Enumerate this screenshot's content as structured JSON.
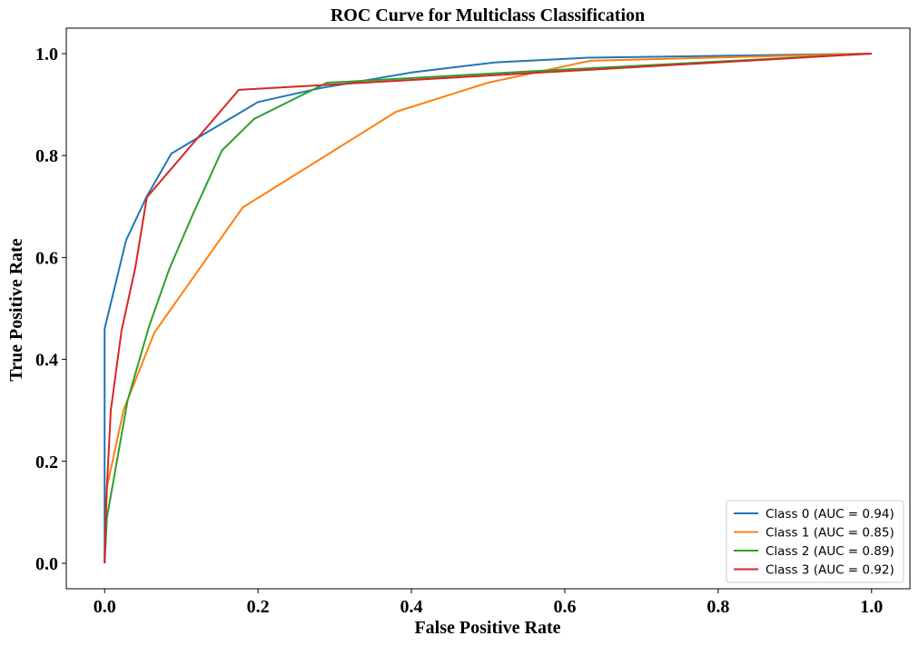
{
  "chart_data": {
    "type": "line",
    "title": "ROC Curve for Multiclass Classification",
    "xlabel": "False Positive Rate",
    "ylabel": "True Positive Rate",
    "xlim": [
      -0.05,
      1.05
    ],
    "ylim": [
      -0.05,
      1.05
    ],
    "xticks": [
      0.0,
      0.2,
      0.4,
      0.6,
      0.8,
      1.0
    ],
    "yticks": [
      0.0,
      0.2,
      0.4,
      0.6,
      0.8,
      1.0
    ],
    "xtick_labels": [
      "0.0",
      "0.2",
      "0.4",
      "0.6",
      "0.8",
      "1.0"
    ],
    "ytick_labels": [
      "0.0",
      "0.2",
      "0.4",
      "0.6",
      "0.8",
      "1.0"
    ],
    "grid": false,
    "legend_position": "lower-right",
    "series": [
      {
        "name": "Class 0 (AUC = 0.94)",
        "color": "#1f77b4",
        "x": [
          0.0,
          0.0,
          0.0,
          0.028,
          0.055,
          0.087,
          0.2,
          0.28,
          0.4,
          0.51,
          0.63,
          1.0
        ],
        "y": [
          0.0,
          0.2,
          0.46,
          0.634,
          0.72,
          0.804,
          0.905,
          0.932,
          0.963,
          0.983,
          0.992,
          1.0
        ]
      },
      {
        "name": "Class 1 (AUC = 0.85)",
        "color": "#ff7f0e",
        "x": [
          0.0,
          0.003,
          0.025,
          0.065,
          0.18,
          0.38,
          0.5,
          0.633,
          1.0
        ],
        "y": [
          0.0,
          0.15,
          0.302,
          0.453,
          0.698,
          0.886,
          0.943,
          0.986,
          1.0
        ]
      },
      {
        "name": "Class 2 (AUC = 0.89)",
        "color": "#2ca02c",
        "x": [
          0.0,
          0.003,
          0.03,
          0.058,
          0.085,
          0.116,
          0.153,
          0.195,
          0.29,
          0.33,
          0.55,
          1.0
        ],
        "y": [
          0.0,
          0.09,
          0.32,
          0.465,
          0.58,
          0.688,
          0.81,
          0.872,
          0.943,
          0.946,
          0.965,
          1.0
        ]
      },
      {
        "name": "Class 3 (AUC = 0.92)",
        "color": "#d62728",
        "x": [
          0.0,
          0.002,
          0.008,
          0.022,
          0.04,
          0.055,
          0.175,
          1.0
        ],
        "y": [
          0.0,
          0.12,
          0.3,
          0.456,
          0.58,
          0.718,
          0.929,
          1.0
        ]
      }
    ]
  }
}
